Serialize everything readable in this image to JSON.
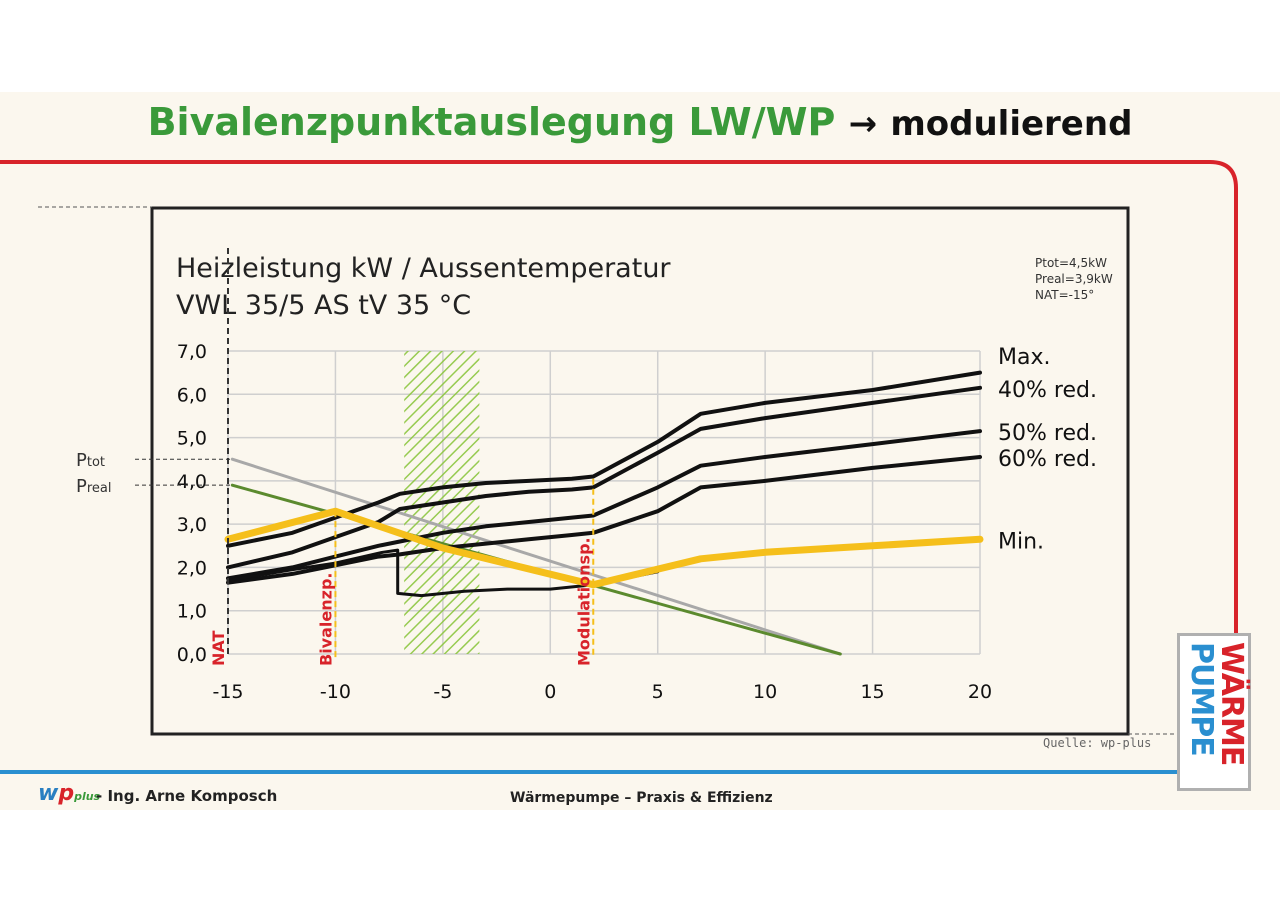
{
  "page": {
    "title_main": "Bivalenzpunktauslegung LW/WP",
    "title_arrow": "→",
    "title_sub": "modulierend",
    "footer_author": "- Ing. Arne Komposch",
    "footer_center": "Wärmepumpe – Praxis & Effizienz",
    "source": "Quelle: wp-plus",
    "logo": {
      "w": "w",
      "p": "p",
      "plus": "plus"
    },
    "badge": {
      "word1": "WÄRME",
      "word2": "PUMPE"
    },
    "colors": {
      "title_green": "#3a9a3a",
      "frame_red": "#d8232a",
      "frame_blue": "#2a8fd0",
      "min_curve": "#f5bf1b",
      "demand_grey": "#a8a8a8",
      "demand_green": "#5b8a2e",
      "marker_red": "#d8232a",
      "hatch_green": "#8cc63f"
    }
  },
  "chart_data": {
    "type": "line",
    "title_line1": "Heizleistung kW / Aussentemperatur",
    "title_line2": "VWL 35/5 AS tV 35 °C",
    "xlim": [
      -15,
      20
    ],
    "ylim": [
      0,
      7
    ],
    "x_ticks": [
      "-15",
      "-10",
      "-5",
      "0",
      "5",
      "10",
      "15",
      "20"
    ],
    "x_tick_values": [
      -15,
      -10,
      -5,
      0,
      5,
      10,
      15,
      20
    ],
    "y_ticks": [
      "0,0",
      "1,0",
      "2,0",
      "3,0",
      "4,0",
      "5,0",
      "6,0",
      "7,0"
    ],
    "y_tick_values": [
      0,
      1,
      2,
      3,
      4,
      5,
      6,
      7
    ],
    "grid": true,
    "info_lines": [
      "Ptot=4,5kW",
      "Preal=3,9kW",
      "NAT=-15°"
    ],
    "ptot": {
      "base": "P",
      "sub": "tot",
      "value": 4.5
    },
    "preal": {
      "base": "P",
      "sub": "real",
      "value": 3.9
    },
    "hatch_range": [
      -6.8,
      -3.3
    ],
    "series": [
      {
        "name": "Max.",
        "color": "#111111",
        "width": 4,
        "points": [
          [
            -15,
            2.5
          ],
          [
            -12,
            2.8
          ],
          [
            -10,
            3.15
          ],
          [
            -8,
            3.5
          ],
          [
            -7,
            3.7
          ],
          [
            -5,
            3.85
          ],
          [
            -3,
            3.95
          ],
          [
            -1,
            4.0
          ],
          [
            1,
            4.05
          ],
          [
            2,
            4.1
          ],
          [
            5,
            4.9
          ],
          [
            7,
            5.55
          ],
          [
            10,
            5.8
          ],
          [
            15,
            6.1
          ],
          [
            20,
            6.5
          ]
        ]
      },
      {
        "name": "40% red.",
        "color": "#111111",
        "width": 4,
        "points": [
          [
            -15,
            2.0
          ],
          [
            -12,
            2.35
          ],
          [
            -10,
            2.7
          ],
          [
            -8,
            3.05
          ],
          [
            -7,
            3.35
          ],
          [
            -5,
            3.5
          ],
          [
            -3,
            3.65
          ],
          [
            -1,
            3.75
          ],
          [
            1,
            3.8
          ],
          [
            2,
            3.85
          ],
          [
            5,
            4.65
          ],
          [
            7,
            5.2
          ],
          [
            10,
            5.45
          ],
          [
            15,
            5.8
          ],
          [
            20,
            6.15
          ]
        ]
      },
      {
        "name": "50% red.",
        "color": "#111111",
        "width": 4,
        "points": [
          [
            -15,
            1.75
          ],
          [
            -12,
            2.0
          ],
          [
            -10,
            2.25
          ],
          [
            -8,
            2.5
          ],
          [
            -7,
            2.6
          ],
          [
            -5,
            2.8
          ],
          [
            -3,
            2.95
          ],
          [
            -1,
            3.05
          ],
          [
            1,
            3.15
          ],
          [
            2,
            3.2
          ],
          [
            5,
            3.85
          ],
          [
            7,
            4.35
          ],
          [
            10,
            4.55
          ],
          [
            15,
            4.85
          ],
          [
            20,
            5.15
          ]
        ]
      },
      {
        "name": "60% red.",
        "color": "#111111",
        "width": 4,
        "points": [
          [
            -15,
            1.65
          ],
          [
            -12,
            1.85
          ],
          [
            -10,
            2.05
          ],
          [
            -8,
            2.25
          ],
          [
            -7,
            2.3
          ],
          [
            -5,
            2.45
          ],
          [
            -3,
            2.55
          ],
          [
            -1,
            2.65
          ],
          [
            1,
            2.75
          ],
          [
            2,
            2.8
          ],
          [
            5,
            3.3
          ],
          [
            7,
            3.85
          ],
          [
            10,
            4.0
          ],
          [
            15,
            4.3
          ],
          [
            20,
            4.55
          ]
        ]
      },
      {
        "name": "Min.",
        "color": "#f5bf1b",
        "width": 7,
        "points": [
          [
            -15,
            2.65
          ],
          [
            -10,
            3.3
          ],
          [
            -5,
            2.45
          ],
          [
            2,
            1.6
          ],
          [
            7,
            2.2
          ],
          [
            10,
            2.35
          ],
          [
            15,
            2.5
          ],
          [
            20,
            2.65
          ]
        ]
      },
      {
        "name": "",
        "color": "#111111",
        "width": 3,
        "points": [
          [
            -15,
            1.7
          ],
          [
            -12,
            1.95
          ],
          [
            -10,
            2.1
          ],
          [
            -7.8,
            2.35
          ],
          [
            -7.1,
            2.4
          ],
          [
            -7.1,
            1.4
          ],
          [
            -6,
            1.35
          ],
          [
            -4,
            1.45
          ],
          [
            -2,
            1.5
          ],
          [
            0,
            1.5
          ],
          [
            2,
            1.6
          ],
          [
            5,
            1.9
          ]
        ]
      },
      {
        "name": "",
        "color": "#a8a8a8",
        "width": 3,
        "points": [
          [
            -14.8,
            4.5
          ],
          [
            13.5,
            0.0
          ]
        ]
      },
      {
        "name": "",
        "color": "#5b8a2e",
        "width": 3,
        "points": [
          [
            -14.8,
            3.9
          ],
          [
            13.5,
            0.0
          ]
        ]
      }
    ],
    "markers": [
      {
        "label": "NAT",
        "x": -15,
        "color": "#d8232a",
        "dash_color": "#333333"
      },
      {
        "label": "Bivalenzp.",
        "x": -10,
        "color": "#d8232a",
        "dash_color": "#f5bf1b"
      },
      {
        "label": "Modulationsp.",
        "x": 2,
        "color": "#d8232a",
        "dash_color": "#f5bf1b"
      }
    ]
  }
}
